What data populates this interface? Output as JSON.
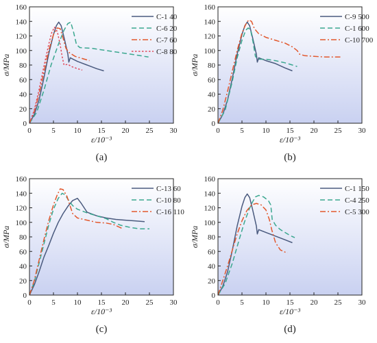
{
  "colors": {
    "navy": "#4a5a7e",
    "teal": "#3aa78f",
    "orange": "#e2572c",
    "red": "#e0495a",
    "bg_top": "#ffffff",
    "bg_bottom": "#c9d1f1",
    "axis": "#222222"
  },
  "chart_data": [
    {
      "type": "line",
      "panel_label": "(a)",
      "xlabel": "ε/10⁻³",
      "ylabel": "σ/MPa",
      "xlim": [
        0,
        30
      ],
      "ylim": [
        0,
        160
      ],
      "xticks": [
        "0",
        "5",
        "10",
        "15",
        "20",
        "25",
        "30"
      ],
      "yticks": [
        "0",
        "20",
        "40",
        "60",
        "80",
        "100",
        "120",
        "140",
        "160"
      ],
      "grid": false,
      "legend_position": "top-right",
      "series": [
        {
          "name": "C-1 40",
          "style": "solid",
          "color": "#4a5a7e",
          "points": [
            [
              0,
              0
            ],
            [
              1,
              12
            ],
            [
              2,
              32
            ],
            [
              3,
              62
            ],
            [
              4,
              95
            ],
            [
              5,
              122
            ],
            [
              5.6,
              134
            ],
            [
              6.1,
              139
            ],
            [
              6.6,
              134
            ],
            [
              7.2,
              118
            ],
            [
              8.0,
              95
            ],
            [
              8.2,
              84
            ],
            [
              8.5,
              90
            ],
            [
              10,
              85
            ],
            [
              12,
              80
            ],
            [
              14,
              75
            ],
            [
              15.5,
              72
            ]
          ]
        },
        {
          "name": "C-6 20",
          "style": "dashed",
          "color": "#3aa78f",
          "points": [
            [
              0,
              0
            ],
            [
              1.5,
              15
            ],
            [
              3,
              45
            ],
            [
              4.5,
              80
            ],
            [
              6,
              108
            ],
            [
              7.2,
              128
            ],
            [
              8,
              137
            ],
            [
              8.6,
              139
            ],
            [
              9.2,
              125
            ],
            [
              9.8,
              108
            ],
            [
              10.5,
              104
            ],
            [
              13,
              103
            ],
            [
              16,
              100
            ],
            [
              19,
              97
            ],
            [
              22,
              94
            ],
            [
              24.8,
              91
            ]
          ]
        },
        {
          "name": "C-7 60",
          "style": "dashdot",
          "color": "#e2572c",
          "points": [
            [
              0,
              0
            ],
            [
              1,
              16
            ],
            [
              2,
              40
            ],
            [
              3,
              70
            ],
            [
              4,
              100
            ],
            [
              5,
              122
            ],
            [
              5.8,
              131
            ],
            [
              6.4,
              130
            ],
            [
              7,
              117
            ],
            [
              7.6,
              103
            ],
            [
              8.3,
              97
            ],
            [
              9.5,
              92
            ],
            [
              11.5,
              88
            ],
            [
              12.5,
              86
            ]
          ]
        },
        {
          "name": "C-8 80",
          "style": "dotted",
          "color": "#e0495a",
          "points": [
            [
              0,
              0
            ],
            [
              1,
              18
            ],
            [
              2,
              46
            ],
            [
              3,
              78
            ],
            [
              4,
              108
            ],
            [
              4.6,
              124
            ],
            [
              5.2,
              132
            ],
            [
              5.8,
              126
            ],
            [
              6.4,
              108
            ],
            [
              6.8,
              92
            ],
            [
              7.2,
              80
            ],
            [
              8,
              81
            ],
            [
              8.7,
              78
            ],
            [
              10,
              75
            ],
            [
              11,
              73
            ]
          ]
        }
      ]
    },
    {
      "type": "line",
      "panel_label": "(b)",
      "xlabel": "ε/10⁻³",
      "ylabel": "σ/MPa",
      "xlim": [
        0,
        30
      ],
      "ylim": [
        0,
        160
      ],
      "xticks": [
        "0",
        "5",
        "10",
        "15",
        "20",
        "25",
        "30"
      ],
      "yticks": [
        "0",
        "20",
        "40",
        "60",
        "80",
        "100",
        "120",
        "140",
        "160"
      ],
      "grid": false,
      "legend_position": "top-right",
      "series": [
        {
          "name": "C-9   500",
          "style": "solid",
          "color": "#4a5a7e",
          "points": [
            [
              0,
              0
            ],
            [
              1,
              12
            ],
            [
              2,
              32
            ],
            [
              3,
              62
            ],
            [
              4,
              95
            ],
            [
              5,
              122
            ],
            [
              5.6,
              134
            ],
            [
              6.1,
              139
            ],
            [
              6.6,
              134
            ],
            [
              7.2,
              118
            ],
            [
              8.0,
              95
            ],
            [
              8.2,
              84
            ],
            [
              8.5,
              90
            ],
            [
              10,
              86
            ],
            [
              12,
              82
            ],
            [
              14,
              76
            ],
            [
              15.5,
              72
            ]
          ]
        },
        {
          "name": "C-1   600",
          "style": "dashed",
          "color": "#3aa78f",
          "points": [
            [
              0,
              0
            ],
            [
              1.5,
              18
            ],
            [
              3,
              58
            ],
            [
              4,
              90
            ],
            [
              5,
              114
            ],
            [
              5.8,
              128
            ],
            [
              6.3,
              131
            ],
            [
              6.8,
              128
            ],
            [
              7.3,
              112
            ],
            [
              7.8,
              92
            ],
            [
              8.3,
              88
            ],
            [
              10,
              88
            ],
            [
              12,
              86
            ],
            [
              14,
              83
            ],
            [
              15,
              81
            ],
            [
              16.5,
              78
            ]
          ]
        },
        {
          "name": "C-10 700",
          "style": "dashdot",
          "color": "#e2572c",
          "points": [
            [
              0,
              0
            ],
            [
              1,
              18
            ],
            [
              2,
              44
            ],
            [
              3,
              72
            ],
            [
              4,
              100
            ],
            [
              5,
              124
            ],
            [
              5.8,
              136
            ],
            [
              6.4,
              142
            ],
            [
              7,
              140
            ],
            [
              7.6,
              130
            ],
            [
              8.5,
              123
            ],
            [
              10,
              118
            ],
            [
              12,
              114
            ],
            [
              14,
              110
            ],
            [
              15.5,
              105
            ],
            [
              16.5,
              100
            ],
            [
              17,
              95
            ],
            [
              18,
              93
            ],
            [
              20,
              92
            ],
            [
              22.5,
              91
            ],
            [
              25.5,
              91
            ]
          ]
        }
      ]
    },
    {
      "type": "line",
      "panel_label": "(c)",
      "xlabel": "ε/10⁻³",
      "ylabel": "σ/MPa",
      "xlim": [
        0,
        30
      ],
      "ylim": [
        0,
        160
      ],
      "xticks": [
        "0",
        "5",
        "10",
        "15",
        "20",
        "25",
        "30"
      ],
      "yticks": [
        "0",
        "20",
        "40",
        "60",
        "80",
        "100",
        "120",
        "140",
        "160"
      ],
      "grid": false,
      "legend_position": "top-right",
      "series": [
        {
          "name": "C-13  60",
          "style": "solid",
          "color": "#4a5a7e",
          "points": [
            [
              0,
              0
            ],
            [
              1,
              14
            ],
            [
              2,
              32
            ],
            [
              3,
              52
            ],
            [
              4,
              68
            ],
            [
              5,
              85
            ],
            [
              6,
              100
            ],
            [
              7,
              112
            ],
            [
              8,
              122
            ],
            [
              9,
              130
            ],
            [
              10,
              133
            ],
            [
              10.8,
              126
            ],
            [
              12,
              114
            ],
            [
              14,
              109
            ],
            [
              16,
              106
            ],
            [
              18,
              104
            ],
            [
              20,
              103
            ],
            [
              22,
              102
            ],
            [
              24,
              101
            ]
          ]
        },
        {
          "name": "C-10  80",
          "style": "dashed",
          "color": "#3aa78f",
          "points": [
            [
              0,
              0
            ],
            [
              1,
              18
            ],
            [
              2,
              44
            ],
            [
              3,
              70
            ],
            [
              4,
              96
            ],
            [
              5,
              118
            ],
            [
              6,
              133
            ],
            [
              6.8,
              140
            ],
            [
              7.4,
              138
            ],
            [
              8.2,
              130
            ],
            [
              9,
              123
            ],
            [
              10,
              118
            ],
            [
              12,
              113
            ],
            [
              14,
              109
            ],
            [
              16,
              105
            ],
            [
              17.5,
              100
            ],
            [
              19,
              96
            ],
            [
              21,
              93
            ],
            [
              23,
              91
            ],
            [
              25,
              91
            ]
          ]
        },
        {
          "name": "C-16 110",
          "style": "dashdot",
          "color": "#e2572c",
          "points": [
            [
              0,
              0
            ],
            [
              1,
              20
            ],
            [
              2,
              48
            ],
            [
              3,
              76
            ],
            [
              4,
              102
            ],
            [
              5,
              124
            ],
            [
              5.8,
              138
            ],
            [
              6.4,
              146
            ],
            [
              7,
              145
            ],
            [
              7.8,
              136
            ],
            [
              8.5,
              122
            ],
            [
              9,
              112
            ],
            [
              10,
              106
            ],
            [
              12,
              103
            ],
            [
              14,
              100
            ],
            [
              16,
              99
            ],
            [
              17.5,
              97
            ],
            [
              18.5,
              94
            ],
            [
              19.5,
              91
            ]
          ]
        }
      ]
    },
    {
      "type": "line",
      "panel_label": "(d)",
      "xlabel": "ε/10⁻³",
      "ylabel": "σ/MPa",
      "xlim": [
        0,
        30
      ],
      "ylim": [
        0,
        160
      ],
      "xticks": [
        "0",
        "5",
        "10",
        "15",
        "20",
        "25",
        "30"
      ],
      "yticks": [
        "0",
        "20",
        "40",
        "60",
        "80",
        "100",
        "120",
        "140",
        "160"
      ],
      "grid": false,
      "legend_position": "top-right",
      "series": [
        {
          "name": "C-1 150",
          "style": "solid",
          "color": "#4a5a7e",
          "points": [
            [
              0,
              0
            ],
            [
              1,
              12
            ],
            [
              2,
              32
            ],
            [
              3,
              62
            ],
            [
              4,
              95
            ],
            [
              5,
              122
            ],
            [
              5.6,
              134
            ],
            [
              6.1,
              139
            ],
            [
              6.6,
              134
            ],
            [
              7.2,
              118
            ],
            [
              8.0,
              95
            ],
            [
              8.2,
              84
            ],
            [
              8.5,
              90
            ],
            [
              10,
              86
            ],
            [
              12,
              81
            ],
            [
              14,
              76
            ],
            [
              15.5,
              72
            ]
          ]
        },
        {
          "name": "C-4 250",
          "style": "dashed",
          "color": "#3aa78f",
          "points": [
            [
              0,
              0
            ],
            [
              1.5,
              16
            ],
            [
              3,
              44
            ],
            [
              4.5,
              78
            ],
            [
              5.5,
              100
            ],
            [
              6.5,
              118
            ],
            [
              7.2,
              128
            ],
            [
              7.8,
              135
            ],
            [
              8.5,
              137
            ],
            [
              9.5,
              135
            ],
            [
              10.5,
              130
            ],
            [
              11,
              124
            ],
            [
              11.3,
              104
            ],
            [
              12,
              96
            ],
            [
              13,
              90
            ],
            [
              14,
              86
            ],
            [
              15,
              82
            ],
            [
              16,
              79
            ]
          ]
        },
        {
          "name": "C-5 300",
          "style": "dashdot",
          "color": "#e2572c",
          "points": [
            [
              0,
              0
            ],
            [
              1,
              20
            ],
            [
              2,
              40
            ],
            [
              3,
              62
            ],
            [
              4,
              84
            ],
            [
              5,
              102
            ],
            [
              6,
              116
            ],
            [
              7,
              124
            ],
            [
              8,
              126
            ],
            [
              9,
              124
            ],
            [
              10,
              117
            ],
            [
              10.7,
              104
            ],
            [
              11.2,
              90
            ],
            [
              12,
              72
            ],
            [
              13,
              62
            ],
            [
              14,
              59
            ],
            [
              14.5,
              58
            ]
          ]
        }
      ]
    }
  ]
}
